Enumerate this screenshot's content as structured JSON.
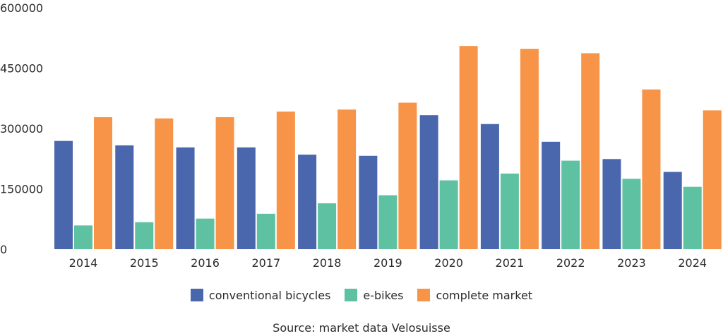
{
  "chart_data": {
    "type": "bar",
    "categories": [
      "2014",
      "2015",
      "2016",
      "2017",
      "2018",
      "2019",
      "2020",
      "2021",
      "2022",
      "2023",
      "2024"
    ],
    "series": [
      {
        "name": "conventional bicycles",
        "color": "#4a66ad",
        "values": [
          269000,
          258000,
          253000,
          253000,
          235000,
          232000,
          333000,
          311000,
          267000,
          224000,
          192000
        ]
      },
      {
        "name": "e-bikes",
        "color": "#5ec2a2",
        "values": [
          59000,
          67000,
          76000,
          88000,
          114000,
          134000,
          171000,
          188000,
          220000,
          175000,
          155000
        ]
      },
      {
        "name": "complete market",
        "color": "#f79447",
        "values": [
          328000,
          325000,
          328000,
          342000,
          347000,
          364000,
          505000,
          498000,
          487000,
          397000,
          345000
        ]
      }
    ],
    "ylim": [
      0,
      600000
    ],
    "yticks": [
      "0",
      "150000",
      "300000",
      "450000",
      "600000"
    ],
    "ytick_values": [
      0,
      150000,
      300000,
      450000,
      600000
    ],
    "grid": false,
    "legend_position": "bottom",
    "title": "",
    "xlabel": "",
    "ylabel": ""
  },
  "source_text": "Source: market data Velosuisse"
}
